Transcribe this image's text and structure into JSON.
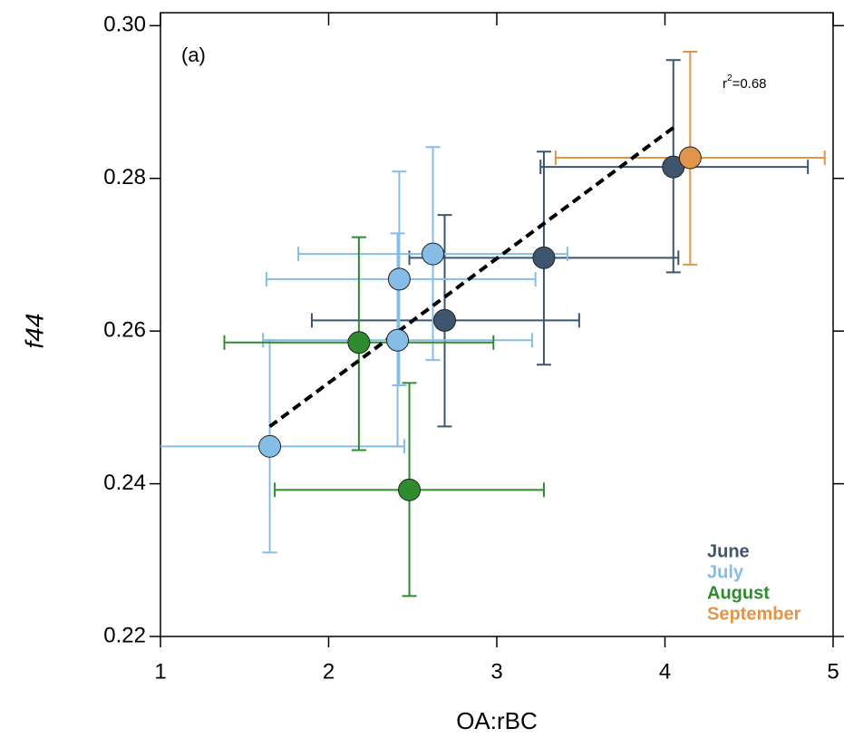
{
  "chart_data": {
    "type": "scatter",
    "panel_label": "(a)",
    "x_label": "OA:rBC",
    "y_label": "f44",
    "annotation": {
      "base": "r",
      "sup": "2",
      "rest": "=0.68"
    },
    "xlim": [
      1,
      5
    ],
    "xticks": [
      1,
      2,
      3,
      4,
      5
    ],
    "ylim": [
      0.22,
      0.3017
    ],
    "yticks": [
      {
        "value": 0.22,
        "label": "0.22"
      },
      {
        "value": 0.24,
        "label": "0.24"
      },
      {
        "value": 0.26,
        "label": "0.26"
      },
      {
        "value": 0.28,
        "label": "0.28"
      },
      {
        "value": 0.3,
        "label": "0.30"
      }
    ],
    "fit": {
      "x": [
        1.65,
        4.06
      ],
      "y": [
        0.2475,
        0.2868
      ],
      "color": "#000000"
    },
    "series": [
      {
        "name": "June",
        "color": "#3d566e",
        "x": [
          4.05,
          3.28,
          2.69
        ],
        "values": [
          0.2815,
          0.2696,
          0.2614
        ],
        "xerr": [
          [
            0.79,
            0.8
          ],
          [
            0.8,
            0.8
          ],
          [
            0.79,
            0.8
          ]
        ],
        "yerr": [
          [
            0.0138,
            0.014
          ],
          [
            0.014,
            0.0139
          ],
          [
            0.0139,
            0.0138
          ]
        ]
      },
      {
        "name": "July",
        "color": "#85bde6",
        "x": [
          1.65,
          2.41,
          2.42,
          2.62
        ],
        "values": [
          0.2449,
          0.2588,
          0.2668,
          0.2701
        ],
        "xerr": [
          [
            0.8,
            0.8
          ],
          [
            0.8,
            0.8
          ],
          [
            0.79,
            0.81
          ],
          [
            0.8,
            0.8
          ]
        ],
        "yerr": [
          [
            0.0139,
            0.0139
          ],
          [
            0.0139,
            0.014
          ],
          [
            0.0139,
            0.0141
          ],
          [
            0.0139,
            0.014
          ]
        ]
      },
      {
        "name": "August",
        "color": "#2e8b2e",
        "x": [
          2.18,
          2.48
        ],
        "values": [
          0.2585,
          0.2392
        ],
        "xerr": [
          [
            0.8,
            0.8
          ],
          [
            0.8,
            0.8
          ]
        ],
        "yerr": [
          [
            0.0141,
            0.0138
          ],
          [
            0.0139,
            0.014
          ]
        ]
      },
      {
        "name": "September",
        "color": "#e0954a",
        "x": [
          4.15
        ],
        "values": [
          0.2827
        ],
        "xerr": [
          [
            0.8,
            0.8
          ]
        ],
        "yerr": [
          [
            0.014,
            0.0139
          ]
        ]
      }
    ]
  }
}
